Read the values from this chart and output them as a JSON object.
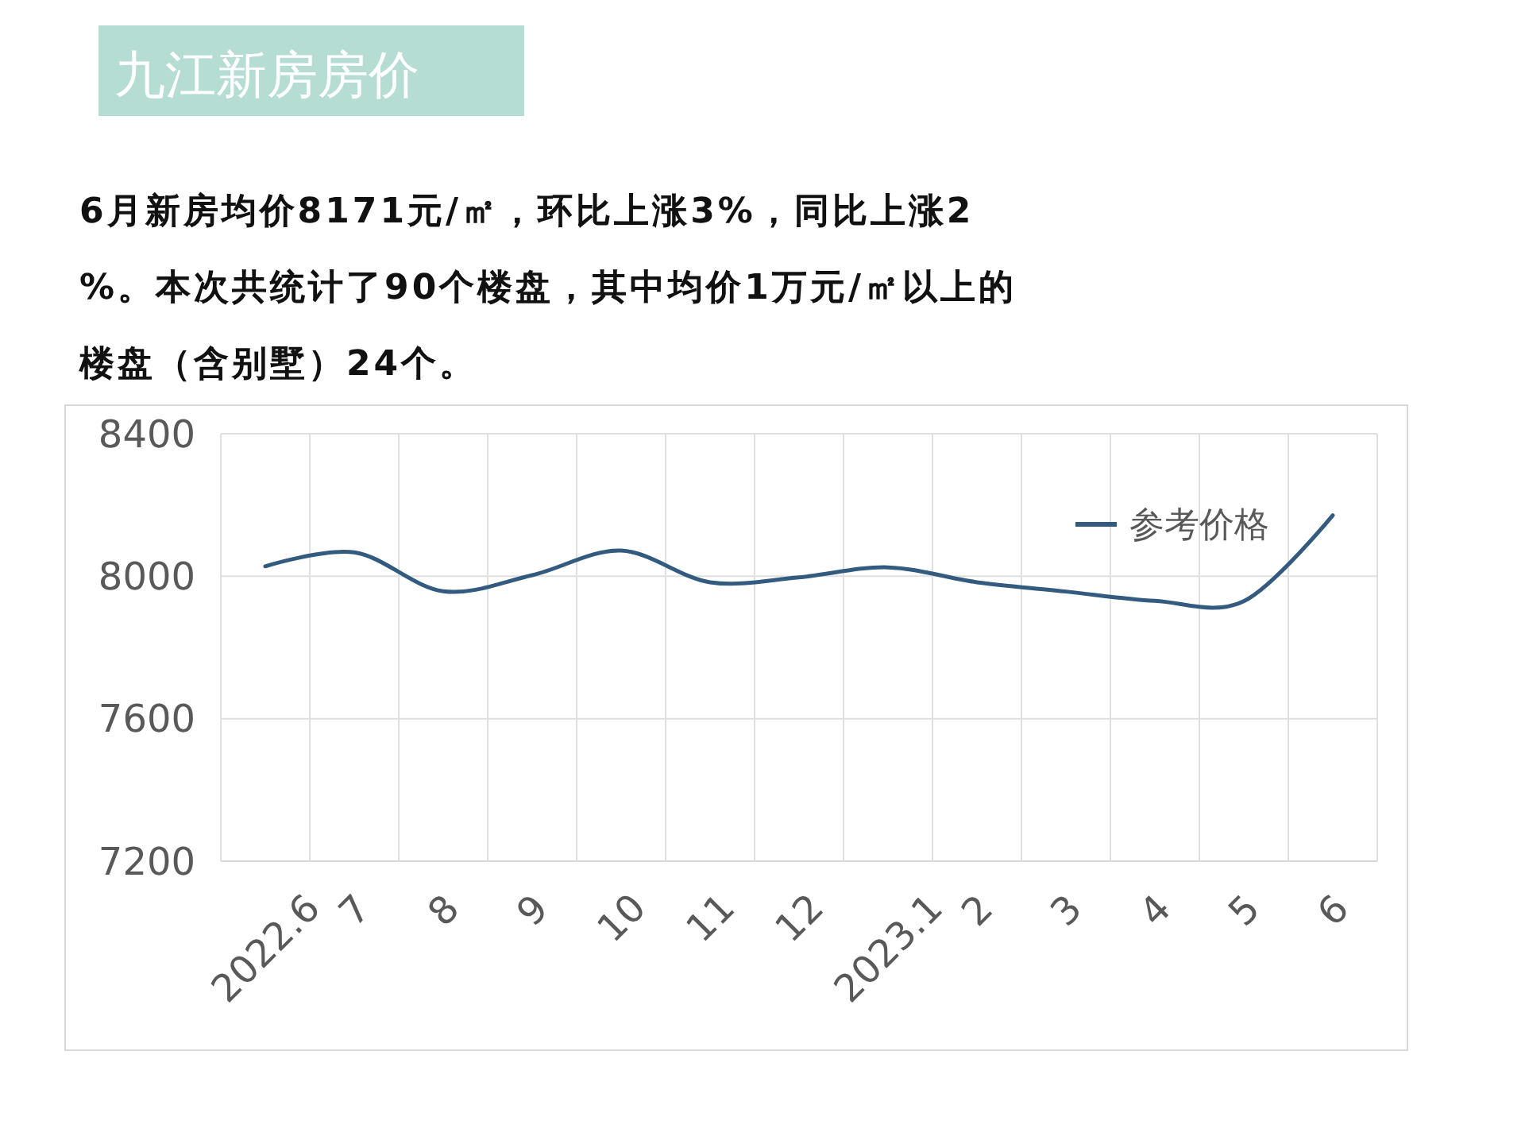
{
  "chart_data": {
    "type": "line",
    "title": "九江新房房价",
    "subtitle": "6月新房均价8171元/㎡，环比上涨3%，同比上涨2%。本次共统计了90个楼盘，其中均价1万元/㎡以上的楼盘（含别墅）24个。",
    "categories": [
      "2022.6",
      "7",
      "8",
      "9",
      "10",
      "11",
      "12",
      "2023.1",
      "2",
      "3",
      "4",
      "5",
      "6"
    ],
    "series": [
      {
        "name": "参考价格",
        "color": "#335b80",
        "values": [
          8028,
          8067,
          7958,
          8003,
          8072,
          7983,
          7997,
          8025,
          7983,
          7957,
          7931,
          7930,
          8171
        ]
      }
    ],
    "ylim": [
      7200,
      8400
    ],
    "yticks": [
      7200,
      7600,
      8000,
      8400
    ],
    "grid": true,
    "legend": "top right"
  }
}
